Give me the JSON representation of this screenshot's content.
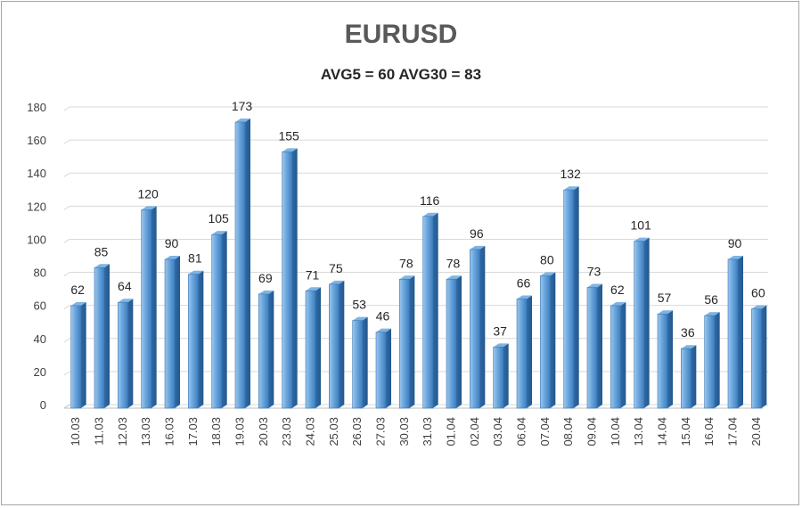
{
  "chart_data": {
    "type": "bar",
    "title": "EURUSD",
    "subtitle": "AVG5 = 60 AVG30 = 83",
    "categories": [
      "10.03",
      "11.03",
      "12.03",
      "13.03",
      "16.03",
      "17.03",
      "18.03",
      "19.03",
      "20.03",
      "23.03",
      "24.03",
      "25.03",
      "26.03",
      "27.03",
      "30.03",
      "31.03",
      "01.04",
      "02.04",
      "03.04",
      "06.04",
      "07.04",
      "08.04",
      "09.04",
      "10.04",
      "13.04",
      "14.04",
      "15.04",
      "16.04",
      "17.04",
      "20.04"
    ],
    "values": [
      62,
      85,
      64,
      120,
      90,
      81,
      105,
      173,
      69,
      155,
      71,
      75,
      53,
      46,
      78,
      116,
      78,
      96,
      37,
      66,
      80,
      132,
      73,
      62,
      101,
      57,
      36,
      56,
      90,
      60
    ],
    "yticks": [
      0,
      20,
      40,
      60,
      80,
      100,
      120,
      140,
      160,
      180
    ],
    "ylim": [
      0,
      180
    ],
    "grid": true,
    "legend": "none",
    "bar_color": "#5b9bd5"
  }
}
